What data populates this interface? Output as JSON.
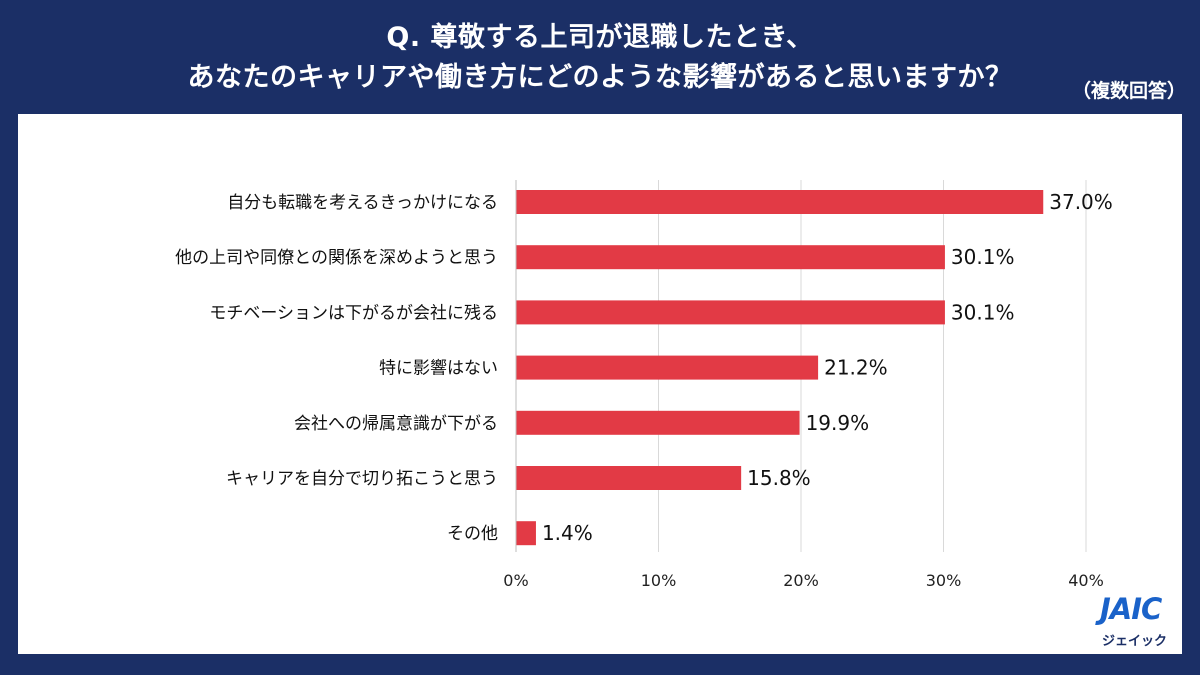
{
  "header": {
    "title_line1": "Q. 尊敬する上司が退職したとき、",
    "title_line2": "あなたのキャリアや働き方にどのような影響があると思いますか？",
    "note": "（複数回答）"
  },
  "colors": {
    "background": "#1b2f66",
    "bar": "#e23a45",
    "grid": "#d9d9d9",
    "logo": "#1a62c9"
  },
  "chart_data": {
    "type": "bar",
    "orientation": "horizontal",
    "categories": [
      "自分も転職を考えるきっかけになる",
      "他の上司や同僚との関係を深めようと思う",
      "モチベーションは下がるが会社に残る",
      "特に影響はない",
      "会社への帰属意識が下がる",
      "キャリアを自分で切り拓こうと思う",
      "その他"
    ],
    "values": [
      37.0,
      30.1,
      30.1,
      21.2,
      19.9,
      15.8,
      1.4
    ],
    "value_labels": [
      "37.0%",
      "30.1%",
      "30.1%",
      "21.2%",
      "19.9%",
      "15.8%",
      "1.4%"
    ],
    "xlim": [
      0,
      40
    ],
    "xticks": [
      0,
      10,
      20,
      30,
      40
    ],
    "xtick_labels": [
      "0%",
      "10%",
      "20%",
      "30%",
      "40%"
    ],
    "grid": true,
    "legend": "none"
  },
  "logo": {
    "mark": "JAIC",
    "text": "ジェイック"
  }
}
